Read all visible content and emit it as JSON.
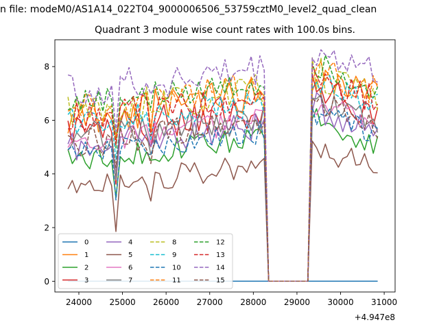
{
  "figure_title": "n file: modeM0/AS1A14_022T04_9000006506_53759cztM0_level2_quad_clean",
  "chart_data": {
    "type": "line",
    "title": "Quadrant 3 module wise count rates with 100.0s bins.",
    "xlabel": "",
    "ylabel": "",
    "x_offset_label": "+4.947e8",
    "xlim": [
      23450,
      31250
    ],
    "ylim": [
      -0.4,
      9.0
    ],
    "xticks": [
      24000,
      25000,
      26000,
      27000,
      28000,
      29000,
      30000,
      31000
    ],
    "yticks": [
      0,
      2,
      4,
      6,
      8
    ],
    "x_start": 23750,
    "x_step": 100,
    "n_points": 72,
    "gap_range": [
      28350,
      29250
    ],
    "legend": {
      "placement": "lower-left",
      "columns": 4
    },
    "series": [
      {
        "name": "0",
        "color": "#1f77b4",
        "dashed": false,
        "base": 0,
        "amp": 0,
        "seed": 0
      },
      {
        "name": "1",
        "color": "#ff7f0e",
        "dashed": false,
        "base": 6.1,
        "amp": 0.9,
        "seed": 1
      },
      {
        "name": "2",
        "color": "#2ca02c",
        "dashed": false,
        "base": 4.5,
        "amp": 0.6,
        "seed": 2
      },
      {
        "name": "3",
        "color": "#d62728",
        "dashed": false,
        "base": 5.6,
        "amp": 0.9,
        "seed": 3
      },
      {
        "name": "4",
        "color": "#9467bd",
        "dashed": false,
        "base": 5.0,
        "amp": 0.7,
        "seed": 4
      },
      {
        "name": "5",
        "color": "#8c564b",
        "dashed": false,
        "base": 3.5,
        "amp": 0.6,
        "seed": 5
      },
      {
        "name": "6",
        "color": "#e377c2",
        "dashed": false,
        "base": 5.2,
        "amp": 0.6,
        "seed": 6
      },
      {
        "name": "7",
        "color": "#7f7f7f",
        "dashed": false,
        "base": 5.3,
        "amp": 0.7,
        "seed": 7
      },
      {
        "name": "8",
        "color": "#bcbd22",
        "dashed": true,
        "base": 6.3,
        "amp": 0.8,
        "seed": 8
      },
      {
        "name": "9",
        "color": "#17becf",
        "dashed": true,
        "base": 5.9,
        "amp": 0.7,
        "seed": 9
      },
      {
        "name": "10",
        "color": "#1f77b4",
        "dashed": true,
        "base": 4.8,
        "amp": 0.6,
        "seed": 10
      },
      {
        "name": "11",
        "color": "#ff7f0e",
        "dashed": true,
        "base": 6.4,
        "amp": 0.8,
        "seed": 11
      },
      {
        "name": "12",
        "color": "#2ca02c",
        "dashed": true,
        "base": 6.6,
        "amp": 0.6,
        "seed": 12
      },
      {
        "name": "13",
        "color": "#d62728",
        "dashed": true,
        "base": 6.1,
        "amp": 0.7,
        "seed": 13
      },
      {
        "name": "14",
        "color": "#9467bd",
        "dashed": true,
        "base": 7.1,
        "amp": 0.8,
        "seed": 14
      },
      {
        "name": "15",
        "color": "#8c564b",
        "dashed": true,
        "base": 5.1,
        "amp": 0.7,
        "seed": 15
      }
    ]
  }
}
